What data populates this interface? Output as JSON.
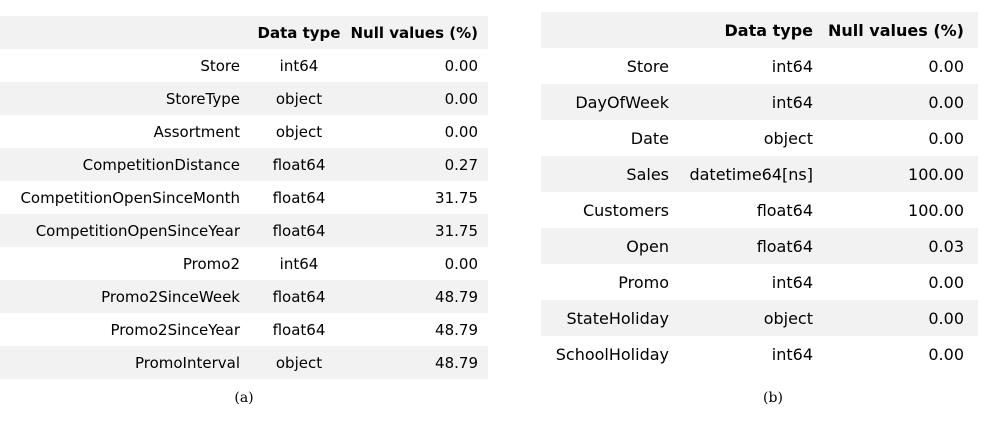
{
  "table_a": {
    "headers": [
      "",
      "Data type",
      "Null values (%)"
    ],
    "rows": [
      [
        "Store",
        "int64",
        "0.00"
      ],
      [
        "StoreType",
        "object",
        "0.00"
      ],
      [
        "Assortment",
        "object",
        "0.00"
      ],
      [
        "CompetitionDistance",
        "float64",
        "0.27"
      ],
      [
        "CompetitionOpenSinceMonth",
        "float64",
        "31.75"
      ],
      [
        "CompetitionOpenSinceYear",
        "float64",
        "31.75"
      ],
      [
        "Promo2",
        "int64",
        "0.00"
      ],
      [
        "Promo2SinceWeek",
        "float64",
        "48.79"
      ],
      [
        "Promo2SinceYear",
        "float64",
        "48.79"
      ],
      [
        "PromoInterval",
        "object",
        "48.79"
      ]
    ],
    "caption": "(a)"
  },
  "table_b": {
    "headers": [
      "",
      "Data type",
      "Null values (%)"
    ],
    "rows": [
      [
        "Store",
        "int64",
        "0.00"
      ],
      [
        "DayOfWeek",
        "int64",
        "0.00"
      ],
      [
        "Date",
        "object",
        "0.00"
      ],
      [
        "Sales",
        "datetime64[ns]",
        "100.00"
      ],
      [
        "Customers",
        "float64",
        "100.00"
      ],
      [
        "Open",
        "float64",
        "0.03"
      ],
      [
        "Promo",
        "int64",
        "0.00"
      ],
      [
        "StateHoliday",
        "object",
        "0.00"
      ],
      [
        "SchoolHoliday",
        "int64",
        "0.00"
      ]
    ],
    "caption": "(b)"
  }
}
